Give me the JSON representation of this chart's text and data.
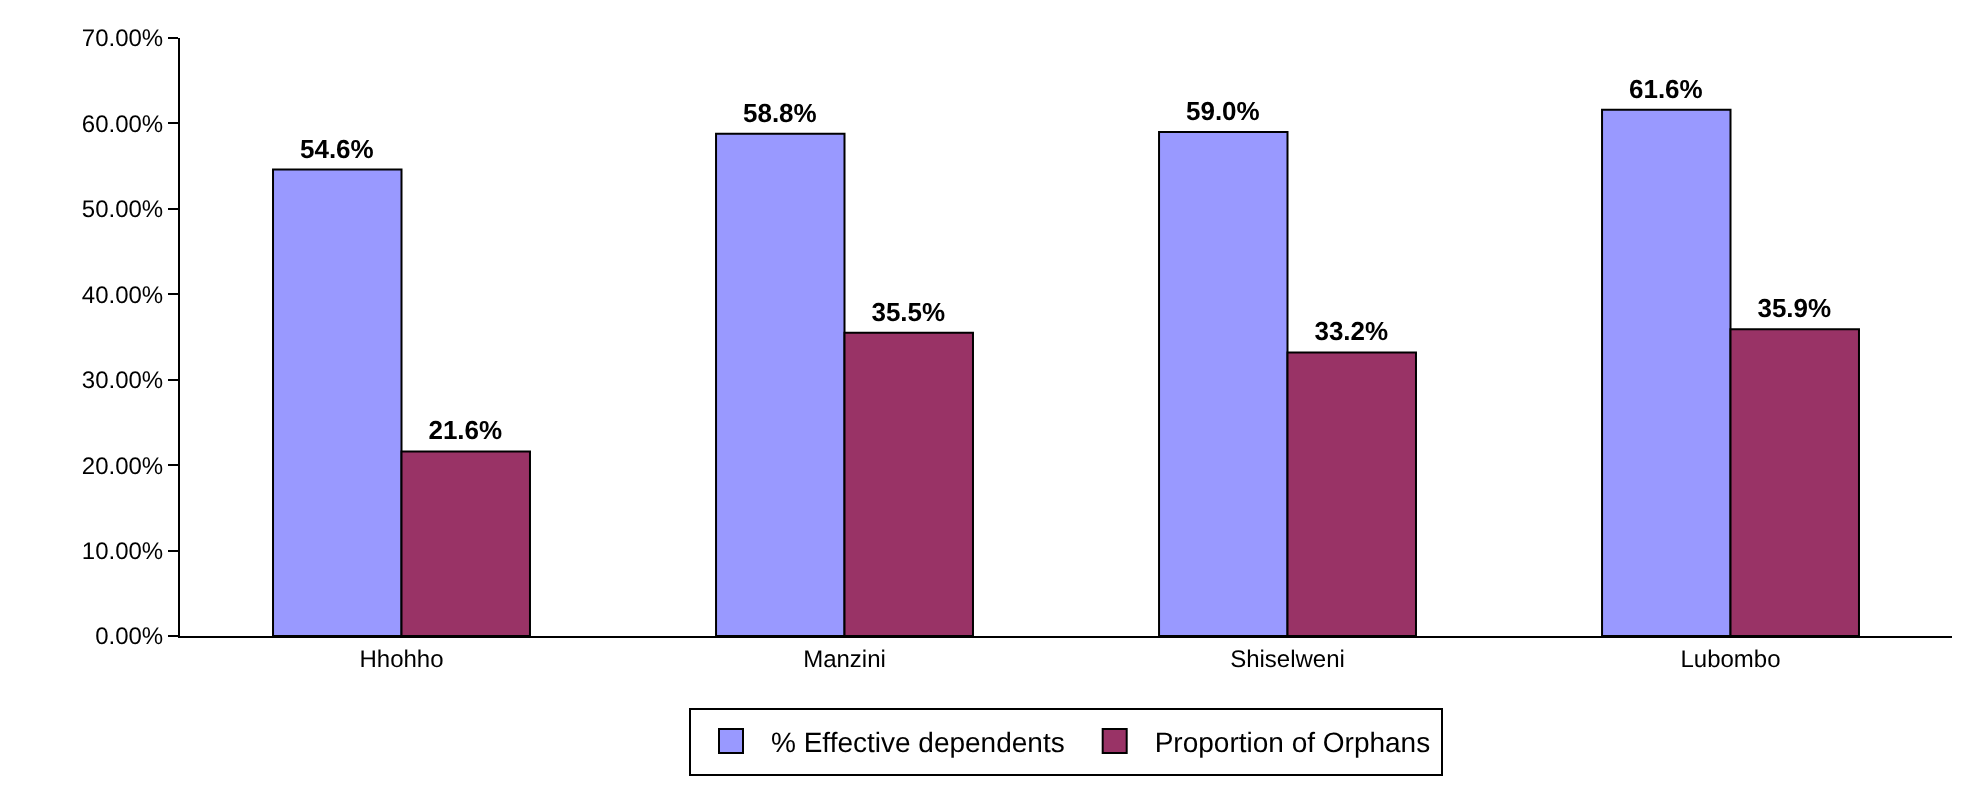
{
  "chart_data": {
    "type": "bar",
    "categories": [
      "Hhohho",
      "Manzini",
      "Shiselweni",
      "Lubombo"
    ],
    "series": [
      {
        "name": "% Effective dependents",
        "color": "#9999ff",
        "values": [
          54.6,
          58.8,
          59.0,
          61.6
        ],
        "value_labels": [
          "54.6%",
          "58.8%",
          "59.0%",
          "61.6%"
        ]
      },
      {
        "name": "Proportion of Orphans",
        "color": "#993366",
        "values": [
          21.6,
          35.5,
          33.2,
          35.9
        ],
        "value_labels": [
          "21.6%",
          "35.5%",
          "33.2%",
          "35.9%"
        ]
      }
    ],
    "ylim": [
      0,
      70
    ],
    "yticks": [
      {
        "value": 0,
        "label": "0.00%"
      },
      {
        "value": 10,
        "label": "10.00%"
      },
      {
        "value": 20,
        "label": "20.00%"
      },
      {
        "value": 30,
        "label": "30.00%"
      },
      {
        "value": 40,
        "label": "40.00%"
      },
      {
        "value": 50,
        "label": "50.00%"
      },
      {
        "value": 60,
        "label": "60.00%"
      },
      {
        "value": 70,
        "label": "70.00%"
      }
    ],
    "grid": false,
    "legend": "bottom"
  }
}
